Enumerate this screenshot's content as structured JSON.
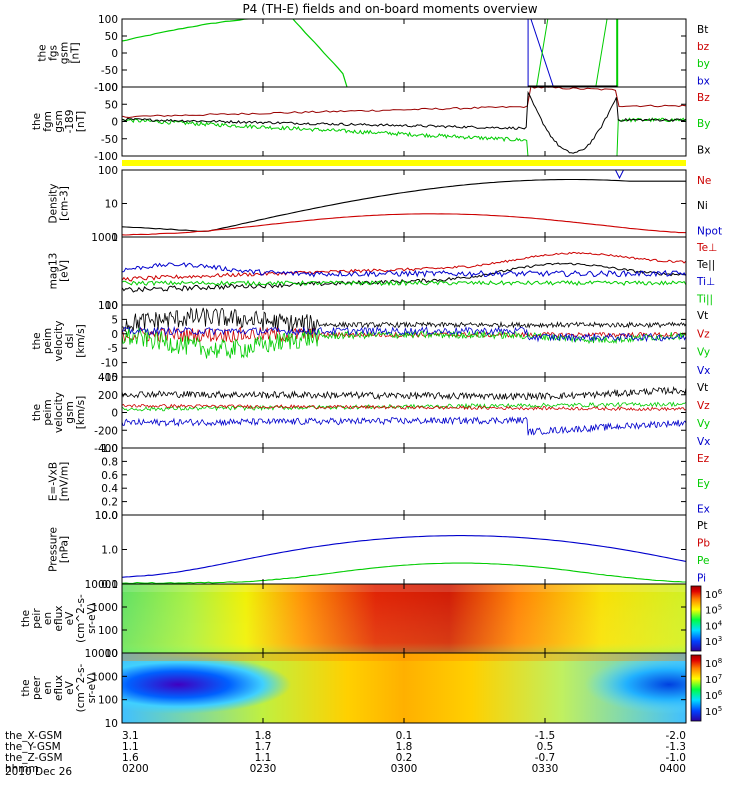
{
  "chart_data": {
    "title": "P4 (TH-E) fields and on-board moments overview",
    "date_label": "2010 Dec 26",
    "x_axis": {
      "unit": "hhmm",
      "ticks": [
        "0200",
        "0230",
        "0300",
        "0330",
        "0400"
      ],
      "ephemeris": [
        {
          "name": "the_X-GSM",
          "values": [
            "3.1",
            "1.8",
            "0.1",
            "-1.5",
            "-2.0"
          ]
        },
        {
          "name": "the_Y-GSM",
          "values": [
            "1.1",
            "1.7",
            "1.8",
            "0.5",
            "-1.3"
          ]
        },
        {
          "name": "the_Z-GSM",
          "values": [
            "1.6",
            "1.1",
            "0.2",
            "-0.7",
            "-1.0"
          ]
        }
      ]
    },
    "panels": [
      {
        "id": "fgs",
        "type": "line",
        "ylabel": [
          "the",
          "fgs",
          "gsm",
          "[nT]"
        ],
        "yticks": [
          "100",
          "50",
          "0",
          "-50",
          "-100"
        ],
        "ylim": [
          -100,
          100
        ],
        "legend": [
          {
            "name": "Bt",
            "color": "#000000"
          },
          {
            "name": "bz",
            "color": "#cc0000"
          },
          {
            "name": "by",
            "color": "#00cc00"
          },
          {
            "name": "bx",
            "color": "#0000cc"
          }
        ]
      },
      {
        "id": "fgm",
        "type": "line",
        "ylabel": [
          "the",
          "fgm",
          "gsm",
          "-189",
          "[nT]"
        ],
        "yticks": [
          "100",
          "50",
          "0",
          "-50",
          "-100"
        ],
        "ylim": [
          -120,
          100
        ],
        "legend": [
          {
            "name": "Bz",
            "color": "#cc0000"
          },
          {
            "name": "By",
            "color": "#00cc00"
          },
          {
            "name": "Bx",
            "color": "#000000"
          }
        ]
      },
      {
        "id": "density",
        "type": "line",
        "scale": "log",
        "ylabel": [
          "Density",
          "[cm-3]"
        ],
        "yticks": [
          "100",
          "10",
          "1"
        ],
        "ylim": [
          0.3,
          200
        ],
        "legend": [
          {
            "name": "Ne",
            "color": "#cc0000"
          },
          {
            "name": "Ni",
            "color": "#000000"
          },
          {
            "name": "Npot",
            "color": "#0000cc"
          }
        ]
      },
      {
        "id": "temp",
        "type": "line",
        "scale": "log",
        "ylabel": [
          "mag13",
          "[eV]"
        ],
        "yticks": [
          "1000",
          "100"
        ],
        "ylim": [
          100,
          1500
        ],
        "legend": [
          {
            "name": "Te⊥",
            "color": "#cc0000"
          },
          {
            "name": "Te||",
            "color": "#000000"
          },
          {
            "name": "Ti⊥",
            "color": "#0000cc"
          },
          {
            "name": "Ti||",
            "color": "#00cc00"
          }
        ]
      },
      {
        "id": "vel_dsl",
        "type": "line",
        "ylabel": [
          "the",
          "peim",
          "velocity",
          "dsl",
          "[km/s]"
        ],
        "yticks": [
          "10",
          "5",
          "0",
          "-5",
          "-10",
          "-15"
        ],
        "ylim": [
          -17,
          12
        ],
        "legend": [
          {
            "name": "Vt",
            "color": "#000000"
          },
          {
            "name": "Vz",
            "color": "#cc0000"
          },
          {
            "name": "Vy",
            "color": "#00cc00"
          },
          {
            "name": "Vx",
            "color": "#0000cc"
          }
        ]
      },
      {
        "id": "vel_gsm",
        "type": "line",
        "ylabel": [
          "the",
          "peim",
          "velocity",
          "gsm",
          "[km/s]"
        ],
        "yticks": [
          "400",
          "200",
          "0",
          "-200",
          "-400"
        ],
        "ylim": [
          -420,
          420
        ],
        "legend": [
          {
            "name": "Vt",
            "color": "#000000"
          },
          {
            "name": "Vz",
            "color": "#cc0000"
          },
          {
            "name": "Vy",
            "color": "#00cc00"
          },
          {
            "name": "Vx",
            "color": "#0000cc"
          }
        ]
      },
      {
        "id": "efield",
        "type": "line",
        "ylabel": [
          "E=-VxB",
          "[mV/m]"
        ],
        "yticks": [
          "1.0",
          "0.8",
          "0.6",
          "0.4",
          "0.2",
          "0.0"
        ],
        "ylim": [
          0,
          1
        ],
        "legend": [
          {
            "name": "Ez",
            "color": "#cc0000"
          },
          {
            "name": "Ey",
            "color": "#00cc00"
          },
          {
            "name": "Ex",
            "color": "#0000cc"
          }
        ]
      },
      {
        "id": "pressure",
        "type": "line",
        "scale": "log",
        "ylabel": [
          "Pressure",
          "[nPa]"
        ],
        "yticks": [
          "10.0",
          "1.0",
          "0.1"
        ],
        "ylim": [
          0.02,
          20
        ],
        "legend": [
          {
            "name": "Pt",
            "color": "#000000"
          },
          {
            "name": "Pb",
            "color": "#cc0000"
          },
          {
            "name": "Pe",
            "color": "#00cc00"
          },
          {
            "name": "Pi",
            "color": "#0000cc"
          }
        ]
      },
      {
        "id": "ion_spec",
        "type": "heatmap",
        "ylabel": [
          "the",
          "peir",
          "en",
          "eflux",
          "eV",
          "(cm^2-s-",
          "sr-eV)"
        ],
        "yticks": [
          "10000",
          "1000",
          "100",
          "10"
        ],
        "ylim": [
          7,
          20000
        ],
        "colorbar_ticks": [
          "10^6",
          "10^5",
          "10^4",
          "10^3"
        ]
      },
      {
        "id": "el_spec",
        "type": "heatmap",
        "ylabel": [
          "the",
          "peer",
          "en",
          "eflux",
          "eV",
          "(cm^2-s-",
          "sr-eV)"
        ],
        "yticks": [
          "10000",
          "1000",
          "100",
          "10"
        ],
        "ylim": [
          7,
          20000
        ],
        "colorbar_ticks": [
          "10^8",
          "10^7",
          "10^6",
          "10^5"
        ]
      }
    ]
  }
}
